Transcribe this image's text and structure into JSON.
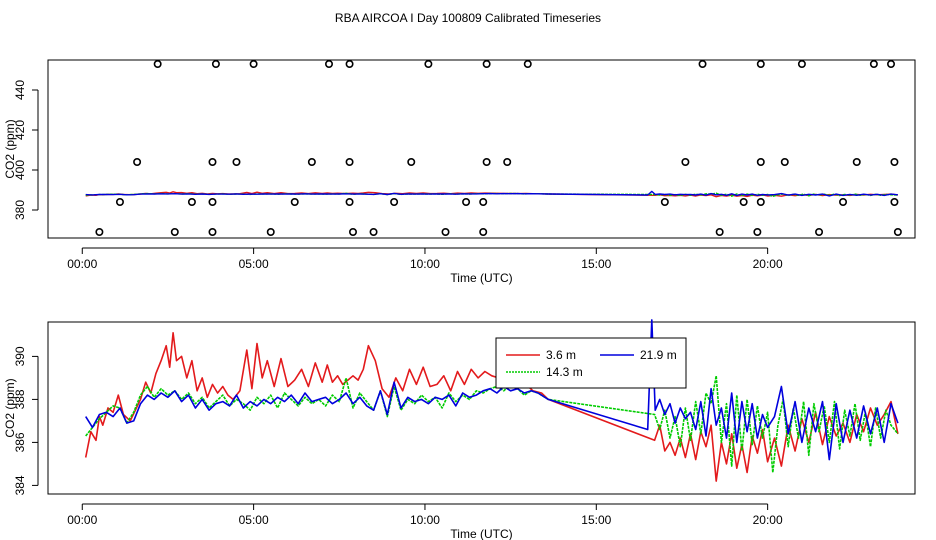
{
  "title": "RBA AIRCOA I  Day 100809  Calibrated Timeseries",
  "colors": {
    "red": "#e31a1c",
    "green": "#00cc00",
    "blue": "#0000dd",
    "black": "#000000"
  },
  "chart_data": [
    {
      "type": "scatter+line",
      "title": "",
      "xlabel": "Time (UTC)",
      "ylabel": "CO2 (ppm)",
      "xlim": [
        -1.0,
        24.3
      ],
      "ylim": [
        366,
        455
      ],
      "xticks": [
        {
          "v": 0,
          "label": "00:00"
        },
        {
          "v": 5,
          "label": "05:00"
        },
        {
          "v": 10,
          "label": "10:00"
        },
        {
          "v": 15,
          "label": "15:00"
        },
        {
          "v": 20,
          "label": "20:00"
        }
      ],
      "yticks": [
        {
          "v": 380,
          "label": "380"
        },
        {
          "v": 400,
          "label": "400"
        },
        {
          "v": 420,
          "label": "420"
        },
        {
          "v": 440,
          "label": "440"
        }
      ],
      "outliers": [
        {
          "x": 2.2,
          "y": 453
        },
        {
          "x": 3.9,
          "y": 453
        },
        {
          "x": 5.0,
          "y": 453
        },
        {
          "x": 7.2,
          "y": 453
        },
        {
          "x": 7.8,
          "y": 453
        },
        {
          "x": 10.1,
          "y": 453
        },
        {
          "x": 11.8,
          "y": 453
        },
        {
          "x": 13.0,
          "y": 453
        },
        {
          "x": 18.1,
          "y": 453
        },
        {
          "x": 19.8,
          "y": 453
        },
        {
          "x": 21.0,
          "y": 453
        },
        {
          "x": 23.1,
          "y": 453
        },
        {
          "x": 23.6,
          "y": 453
        },
        {
          "x": 1.6,
          "y": 404
        },
        {
          "x": 3.8,
          "y": 404
        },
        {
          "x": 4.5,
          "y": 404
        },
        {
          "x": 6.7,
          "y": 404
        },
        {
          "x": 7.8,
          "y": 404
        },
        {
          "x": 9.6,
          "y": 404
        },
        {
          "x": 11.8,
          "y": 404
        },
        {
          "x": 12.4,
          "y": 404
        },
        {
          "x": 17.6,
          "y": 404
        },
        {
          "x": 19.8,
          "y": 404
        },
        {
          "x": 20.5,
          "y": 404
        },
        {
          "x": 22.6,
          "y": 404
        },
        {
          "x": 23.7,
          "y": 404
        },
        {
          "x": 1.1,
          "y": 384
        },
        {
          "x": 3.2,
          "y": 384
        },
        {
          "x": 3.8,
          "y": 384
        },
        {
          "x": 6.2,
          "y": 384
        },
        {
          "x": 7.8,
          "y": 384
        },
        {
          "x": 9.1,
          "y": 384
        },
        {
          "x": 11.2,
          "y": 384
        },
        {
          "x": 11.7,
          "y": 384
        },
        {
          "x": 17.0,
          "y": 384
        },
        {
          "x": 19.3,
          "y": 384
        },
        {
          "x": 19.8,
          "y": 384
        },
        {
          "x": 22.2,
          "y": 384
        },
        {
          "x": 23.7,
          "y": 384
        },
        {
          "x": 0.5,
          "y": 369
        },
        {
          "x": 2.7,
          "y": 369
        },
        {
          "x": 3.8,
          "y": 369
        },
        {
          "x": 5.5,
          "y": 369
        },
        {
          "x": 7.9,
          "y": 369
        },
        {
          "x": 8.5,
          "y": 369
        },
        {
          "x": 10.6,
          "y": 369
        },
        {
          "x": 11.7,
          "y": 369
        },
        {
          "x": 18.6,
          "y": 369
        },
        {
          "x": 19.7,
          "y": 369
        },
        {
          "x": 21.5,
          "y": 369
        },
        {
          "x": 23.8,
          "y": 369
        }
      ],
      "series_ref": "shared"
    },
    {
      "type": "line",
      "title": "",
      "xlabel": "Time (UTC)",
      "ylabel": "CO2 (ppm)",
      "xlim": [
        -1.0,
        24.3
      ],
      "ylim": [
        383.6,
        391.6
      ],
      "xticks": [
        {
          "v": 0,
          "label": "00:00"
        },
        {
          "v": 5,
          "label": "05:00"
        },
        {
          "v": 10,
          "label": "10:00"
        },
        {
          "v": 15,
          "label": "15:00"
        },
        {
          "v": 20,
          "label": "20:00"
        }
      ],
      "yticks": [
        {
          "v": 384,
          "label": "384"
        },
        {
          "v": 386,
          "label": "386"
        },
        {
          "v": 388,
          "label": "388"
        },
        {
          "v": 390,
          "label": "390"
        }
      ],
      "legend": {
        "placement": "top-center",
        "entries": [
          {
            "name": "3.6 m",
            "color": "#e31a1c"
          },
          {
            "name": "21.9 m",
            "color": "#0000dd"
          },
          {
            "name": "14.3 m",
            "color": "#00cc00"
          }
        ]
      },
      "series_ref": "shared"
    }
  ],
  "series": [
    {
      "name": "3.6 m",
      "color": "#e31a1c",
      "x": [
        0.1,
        0.25,
        0.4,
        0.5,
        0.6,
        0.75,
        0.9,
        1.05,
        1.2,
        1.4,
        1.55,
        1.7,
        1.85,
        2.0,
        2.15,
        2.3,
        2.45,
        2.55,
        2.65,
        2.75,
        2.9,
        3.05,
        3.2,
        3.35,
        3.5,
        3.65,
        3.8,
        3.95,
        4.1,
        4.25,
        4.4,
        4.6,
        4.8,
        4.95,
        5.1,
        5.25,
        5.4,
        5.6,
        5.8,
        6.0,
        6.2,
        6.4,
        6.6,
        6.8,
        7.0,
        7.15,
        7.3,
        7.45,
        7.6,
        7.75,
        7.9,
        8.05,
        8.2,
        8.35,
        8.55,
        8.75,
        8.95,
        9.15,
        9.35,
        9.55,
        9.75,
        9.95,
        10.15,
        10.35,
        10.55,
        10.75,
        10.95,
        11.15,
        11.35,
        11.55,
        11.75,
        11.95,
        12.15,
        12.35,
        12.55,
        12.75,
        12.95,
        13.15,
        13.4,
        13.6,
        16.7,
        16.85,
        17.0,
        17.15,
        17.3,
        17.45,
        17.6,
        17.75,
        17.9,
        18.05,
        18.2,
        18.35,
        18.5,
        18.65,
        18.8,
        18.95,
        19.1,
        19.25,
        19.4,
        19.55,
        19.7,
        19.85,
        20.0,
        20.2,
        20.4,
        20.6,
        20.8,
        21.0,
        21.2,
        21.4,
        21.6,
        21.8,
        22.0,
        22.2,
        22.4,
        22.6,
        22.8,
        23.0,
        23.2,
        23.4,
        23.6,
        23.8
      ],
      "y": [
        385.3,
        386.5,
        386.1,
        387.2,
        386.8,
        387.6,
        387.4,
        388.2,
        387.3,
        387.0,
        387.5,
        388.0,
        388.8,
        388.3,
        389.2,
        389.8,
        390.5,
        389.5,
        391.1,
        389.8,
        390.0,
        389.0,
        389.8,
        388.4,
        389.0,
        388.1,
        388.7,
        388.3,
        388.6,
        388.2,
        388.0,
        388.4,
        390.3,
        388.5,
        390.6,
        389.0,
        389.8,
        388.6,
        389.9,
        388.6,
        388.9,
        389.4,
        388.6,
        389.7,
        388.8,
        389.6,
        388.8,
        389.1,
        388.7,
        388.9,
        389.1,
        388.9,
        389.4,
        390.5,
        389.8,
        388.5,
        388.1,
        389.0,
        388.4,
        389.4,
        388.7,
        389.5,
        388.6,
        388.7,
        389.1,
        388.4,
        389.3,
        388.7,
        389.4,
        389.0,
        389.3,
        389.1,
        389.0,
        388.9,
        388.8,
        388.6,
        388.7,
        388.4,
        388.3,
        388.0,
        386.1,
        386.8,
        385.6,
        386.0,
        385.4,
        386.2,
        385.3,
        386.4,
        385.2,
        386.5,
        385.8,
        386.8,
        384.2,
        386.0,
        385.0,
        386.4,
        384.8,
        385.9,
        384.6,
        386.3,
        385.5,
        386.6,
        385.1,
        386.2,
        384.9,
        386.8,
        385.6,
        387.1,
        386.0,
        387.4,
        385.9,
        387.2,
        386.3,
        386.9,
        386.0,
        387.3,
        386.5,
        387.6,
        386.8,
        387.3,
        387.9,
        386.4
      ],
      "gap_after_index": 79
    },
    {
      "name": "14.3 m",
      "color": "#00cc00",
      "x": [
        0.1,
        0.3,
        0.5,
        0.7,
        0.9,
        1.1,
        1.3,
        1.5,
        1.7,
        1.9,
        2.1,
        2.3,
        2.5,
        2.7,
        2.9,
        3.1,
        3.3,
        3.5,
        3.7,
        3.9,
        4.1,
        4.3,
        4.5,
        4.7,
        4.9,
        5.1,
        5.3,
        5.5,
        5.7,
        5.9,
        6.1,
        6.3,
        6.5,
        6.7,
        6.9,
        7.1,
        7.3,
        7.5,
        7.7,
        7.9,
        8.1,
        8.3,
        8.5,
        8.7,
        8.9,
        9.1,
        9.3,
        9.5,
        9.7,
        9.9,
        10.1,
        10.3,
        10.5,
        10.7,
        10.9,
        11.1,
        11.3,
        11.5,
        11.7,
        11.9,
        12.1,
        12.3,
        12.5,
        12.7,
        12.9,
        13.1,
        13.3,
        13.6,
        16.7,
        16.85,
        17.0,
        17.15,
        17.3,
        17.45,
        17.6,
        17.75,
        17.9,
        18.05,
        18.2,
        18.35,
        18.5,
        18.65,
        18.8,
        18.95,
        19.1,
        19.25,
        19.4,
        19.55,
        19.7,
        19.85,
        20.0,
        20.15,
        20.3,
        20.45,
        20.6,
        20.75,
        20.9,
        21.05,
        21.2,
        21.35,
        21.5,
        21.65,
        21.8,
        21.95,
        22.1,
        22.25,
        22.4,
        22.55,
        22.7,
        22.85,
        23.0,
        23.15,
        23.3,
        23.45,
        23.6,
        23.8
      ],
      "y": [
        386.3,
        386.7,
        387.1,
        387.4,
        387.7,
        387.6,
        386.9,
        387.4,
        388.2,
        388.6,
        388.1,
        388.5,
        388.2,
        388.4,
        388.0,
        388.3,
        387.8,
        388.1,
        387.6,
        387.9,
        388.2,
        387.7,
        388.0,
        387.8,
        387.5,
        388.1,
        387.8,
        388.2,
        387.6,
        388.3,
        388.0,
        387.7,
        388.1,
        387.8,
        388.0,
        387.7,
        388.2,
        387.9,
        389.0,
        387.6,
        388.3,
        387.9,
        387.5,
        388.4,
        387.2,
        388.6,
        387.5,
        388.0,
        387.8,
        388.2,
        387.9,
        388.1,
        387.6,
        388.3,
        387.9,
        388.2,
        388.0,
        388.4,
        388.3,
        388.5,
        388.6,
        388.4,
        388.7,
        388.5,
        388.2,
        388.4,
        388.3,
        388.0,
        387.3,
        386.6,
        387.5,
        386.2,
        387.2,
        385.8,
        387.6,
        386.1,
        387.9,
        386.4,
        388.3,
        387.8,
        389.1,
        386.0,
        387.8,
        384.9,
        388.2,
        385.6,
        388.0,
        385.9,
        387.7,
        386.2,
        387.4,
        384.6,
        386.8,
        388.0,
        385.8,
        387.6,
        386.2,
        387.9,
        385.4,
        387.8,
        386.5,
        387.7,
        386.0,
        387.9,
        385.7,
        387.5,
        386.3,
        387.8,
        386.1,
        387.4,
        385.8,
        387.6,
        386.2,
        387.5,
        386.8,
        386.4
      ],
      "gap_after_index": 67
    },
    {
      "name": "21.9 m",
      "color": "#0000dd",
      "x": [
        0.1,
        0.3,
        0.5,
        0.7,
        0.9,
        1.1,
        1.3,
        1.5,
        1.7,
        1.9,
        2.1,
        2.3,
        2.5,
        2.7,
        2.9,
        3.1,
        3.3,
        3.5,
        3.7,
        3.9,
        4.1,
        4.3,
        4.5,
        4.7,
        4.9,
        5.1,
        5.3,
        5.5,
        5.7,
        5.9,
        6.1,
        6.3,
        6.5,
        6.7,
        6.9,
        7.1,
        7.3,
        7.5,
        7.7,
        7.9,
        8.1,
        8.3,
        8.5,
        8.7,
        8.9,
        9.1,
        9.3,
        9.5,
        9.7,
        9.9,
        10.1,
        10.3,
        10.5,
        10.7,
        10.9,
        11.1,
        11.3,
        11.5,
        11.7,
        11.9,
        12.1,
        12.3,
        12.5,
        12.7,
        12.9,
        13.1,
        13.3,
        13.6,
        16.5,
        16.62,
        16.72,
        16.85,
        17.0,
        17.15,
        17.3,
        17.45,
        17.6,
        17.75,
        17.9,
        18.05,
        18.2,
        18.35,
        18.5,
        18.65,
        18.8,
        18.95,
        19.1,
        19.25,
        19.4,
        19.55,
        19.7,
        19.85,
        20.0,
        20.2,
        20.4,
        20.6,
        20.8,
        21.0,
        21.2,
        21.4,
        21.6,
        21.8,
        22.0,
        22.2,
        22.4,
        22.6,
        22.8,
        23.0,
        23.2,
        23.4,
        23.6,
        23.8
      ],
      "y": [
        387.2,
        386.7,
        387.3,
        387.4,
        387.2,
        387.6,
        386.9,
        387.0,
        387.8,
        388.2,
        388.0,
        388.3,
        388.1,
        388.4,
        387.9,
        388.2,
        387.6,
        388.0,
        387.5,
        387.8,
        387.9,
        387.7,
        388.2,
        387.6,
        387.9,
        387.7,
        388.0,
        387.8,
        388.1,
        387.9,
        388.2,
        387.8,
        388.3,
        387.9,
        388.0,
        388.1,
        387.8,
        388.0,
        388.3,
        387.8,
        388.1,
        387.7,
        387.5,
        388.4,
        387.3,
        388.8,
        387.6,
        388.1,
        387.9,
        388.0,
        387.8,
        388.1,
        388.0,
        388.2,
        387.7,
        388.3,
        388.1,
        388.2,
        388.4,
        388.5,
        388.3,
        388.6,
        388.4,
        388.5,
        388.3,
        388.4,
        388.3,
        388.0,
        386.6,
        391.7,
        387.5,
        388.0,
        387.3,
        387.8,
        386.9,
        387.6,
        387.1,
        387.4,
        386.6,
        387.9,
        386.3,
        388.5,
        386.8,
        387.6,
        386.2,
        388.3,
        386.0,
        387.9,
        386.5,
        387.8,
        386.2,
        387.3,
        386.7,
        387.2,
        388.6,
        386.4,
        387.9,
        386.0,
        387.6,
        386.5,
        387.9,
        385.2,
        387.8,
        386.0,
        387.5,
        386.2,
        387.7,
        386.4,
        387.6,
        386.0,
        387.8,
        386.9
      ],
      "gap_after_index": 67
    }
  ]
}
